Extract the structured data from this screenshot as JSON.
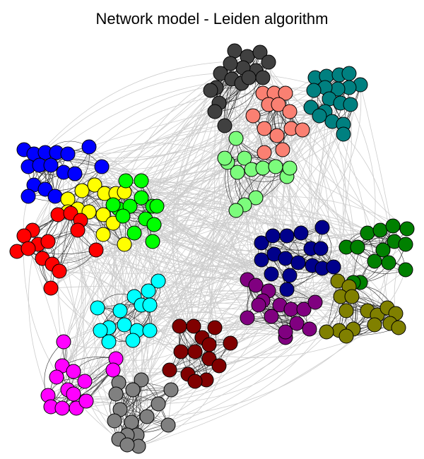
{
  "figure": {
    "title": "Network model - Leiden algorithm"
  },
  "style": {
    "background": "#ffffff",
    "inter_edge_color": "#cccccc",
    "intra_edge_color": "#333333",
    "node_outline_color": "#000000"
  },
  "communities": [
    {
      "id": "black-cluster",
      "color": "#404040"
    },
    {
      "id": "teal-cluster",
      "color": "#008080"
    },
    {
      "id": "salmon-cluster",
      "color": "#fa8072"
    },
    {
      "id": "lightgreen-cluster",
      "color": "#7cfc7c"
    },
    {
      "id": "blue-cluster",
      "color": "#0000ff"
    },
    {
      "id": "yellow-cluster",
      "color": "#ffff00"
    },
    {
      "id": "green-cluster",
      "color": "#00ff00"
    },
    {
      "id": "red-cluster",
      "color": "#ff0000"
    },
    {
      "id": "navy-cluster",
      "color": "#00008b"
    },
    {
      "id": "darkgreen-cluster",
      "color": "#008000"
    },
    {
      "id": "purple-cluster",
      "color": "#800080"
    },
    {
      "id": "olive-cluster",
      "color": "#808000"
    },
    {
      "id": "cyan-cluster",
      "color": "#00ffff"
    },
    {
      "id": "maroon-cluster",
      "color": "#800000"
    },
    {
      "id": "magenta-cluster",
      "color": "#ff00ff"
    },
    {
      "id": "gray-cluster",
      "color": "#808080"
    }
  ]
}
